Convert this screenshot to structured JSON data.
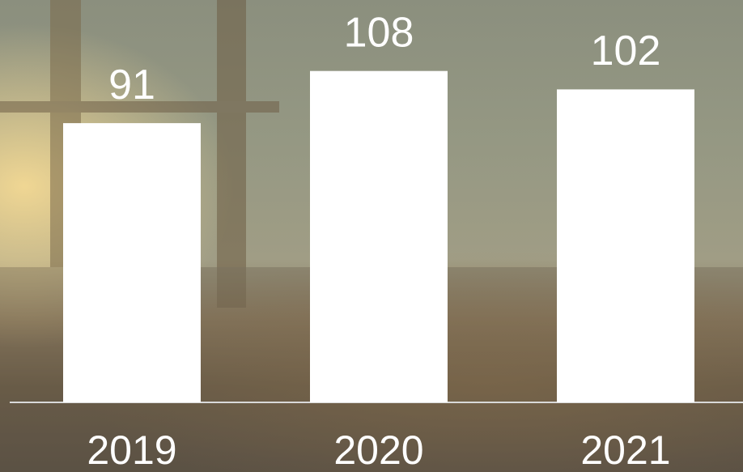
{
  "chart_data": {
    "type": "bar",
    "categories": [
      "2019",
      "2020",
      "2021"
    ],
    "values": [
      91,
      108,
      102
    ],
    "color": "#ffffff"
  }
}
